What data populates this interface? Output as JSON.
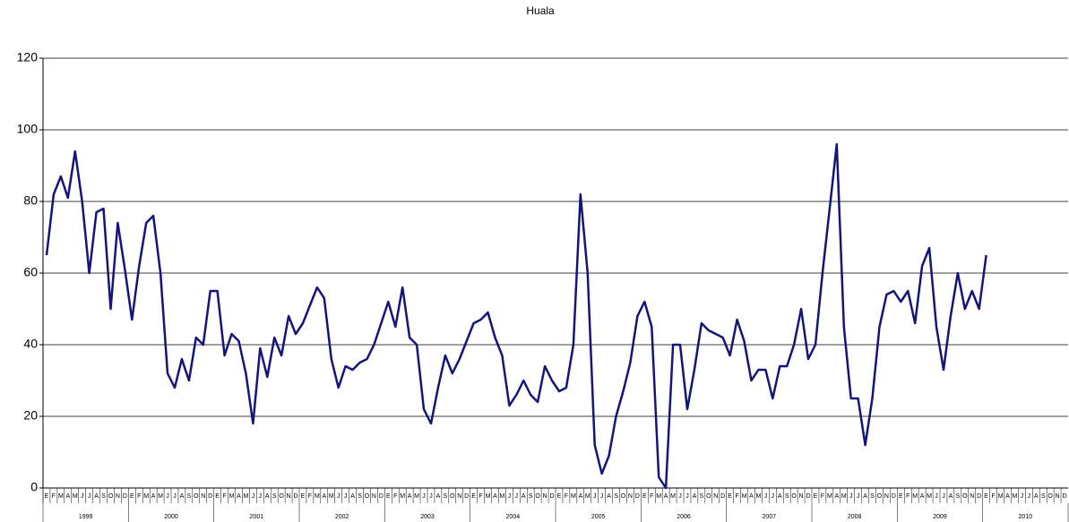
{
  "chart_data": {
    "type": "line",
    "title": "Huala",
    "categories": [
      "E",
      "F",
      "M",
      "A",
      "M",
      "J",
      "J",
      "A",
      "S",
      "O",
      "N",
      "D",
      "E",
      "F",
      "M",
      "A",
      "M",
      "J",
      "J",
      "A",
      "S",
      "O",
      "N",
      "D",
      "E",
      "F",
      "M",
      "A",
      "M",
      "J",
      "J",
      "A",
      "S",
      "O",
      "N",
      "D",
      "E",
      "F",
      "M",
      "A",
      "M",
      "J",
      "J",
      "A",
      "S",
      "O",
      "N",
      "D",
      "E",
      "F",
      "M",
      "A",
      "M",
      "J",
      "J",
      "A",
      "S",
      "O",
      "N",
      "D",
      "E",
      "F",
      "M",
      "A",
      "M",
      "J",
      "J",
      "A",
      "S",
      "O",
      "N",
      "D",
      "E",
      "F",
      "M",
      "A",
      "M",
      "J",
      "J",
      "A",
      "S",
      "O",
      "N",
      "D",
      "E",
      "F",
      "M",
      "A",
      "M",
      "J",
      "J",
      "A",
      "S",
      "O",
      "N",
      "D",
      "E",
      "F",
      "M",
      "A",
      "M",
      "J",
      "J",
      "A",
      "S",
      "O",
      "N",
      "D",
      "E",
      "F",
      "M",
      "A",
      "M",
      "J",
      "J",
      "A",
      "S",
      "O",
      "N",
      "D",
      "E",
      "F",
      "M",
      "A",
      "M",
      "J",
      "J",
      "A",
      "S",
      "O",
      "N",
      "D",
      "E",
      "F",
      "M",
      "A",
      "M",
      "J",
      "J",
      "A",
      "S",
      "O",
      "N",
      "D"
    ],
    "years": [
      "1999",
      "2000",
      "2001",
      "2002",
      "2003",
      "2004",
      "2005",
      "2006",
      "2007",
      "2008",
      "2009",
      "2010"
    ],
    "series": [
      {
        "name": "Huala",
        "color": "#14147a",
        "values": [
          65,
          82,
          87,
          81,
          94,
          80,
          60,
          77,
          78,
          50,
          74,
          61,
          47,
          62,
          74,
          76,
          60,
          32,
          28,
          36,
          30,
          42,
          40,
          55,
          55,
          37,
          43,
          41,
          32,
          18,
          39,
          31,
          42,
          37,
          48,
          43,
          46,
          51,
          56,
          53,
          36,
          28,
          34,
          33,
          35,
          36,
          40,
          46,
          52,
          45,
          56,
          42,
          40,
          22,
          18,
          28,
          37,
          32,
          36,
          41,
          46,
          47,
          49,
          42,
          37,
          23,
          26,
          30,
          26,
          24,
          34,
          30,
          27,
          28,
          40,
          82,
          60,
          12,
          4,
          9,
          20,
          27,
          35,
          48,
          52,
          45,
          3,
          0,
          40,
          40,
          22,
          33,
          46,
          44,
          43,
          42,
          37,
          47,
          41,
          30,
          33,
          33,
          25,
          34,
          34,
          40,
          50,
          36,
          40,
          60,
          78,
          96,
          45,
          25,
          25,
          12,
          25,
          45,
          54,
          55,
          52,
          55,
          46,
          62,
          67,
          45,
          33,
          48,
          60,
          50,
          55,
          50,
          65,
          null,
          null,
          null,
          null,
          null,
          null,
          null,
          null,
          null,
          null,
          null
        ]
      }
    ],
    "ylim": [
      0,
      120
    ],
    "yticks": [
      0,
      20,
      40,
      60,
      80,
      100,
      120
    ],
    "grid": true
  }
}
